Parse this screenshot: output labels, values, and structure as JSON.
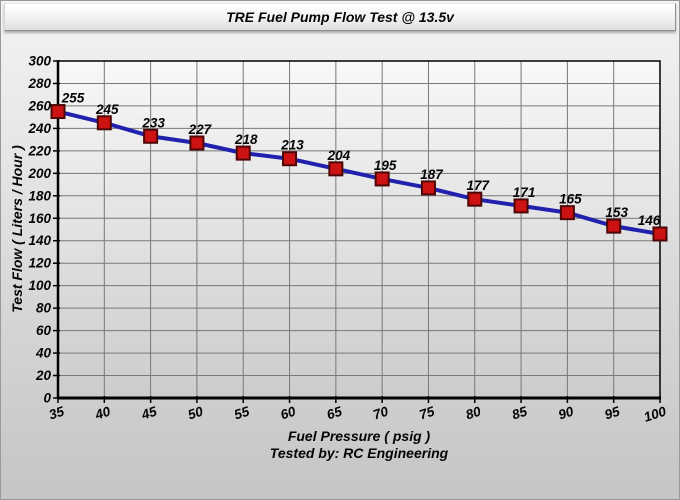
{
  "window_title": "TRE Fuel Pump Flow Test @ 13.5v",
  "chart_data": {
    "type": "line",
    "title": "TRE Fuel Pump Flow Test @ 13.5v",
    "xlabel": "Fuel Pressure ( psig )",
    "ylabel": "Test Flow ( Liters / Hour )",
    "footer": "Tested by: RC Engineering",
    "x": [
      35,
      40,
      45,
      50,
      55,
      60,
      65,
      70,
      75,
      80,
      85,
      90,
      95,
      100
    ],
    "values": [
      255,
      245,
      233,
      227,
      218,
      213,
      204,
      195,
      187,
      177,
      171,
      165,
      153,
      146
    ],
    "xlim": [
      35,
      100
    ],
    "ylim": [
      0,
      300
    ],
    "xtick_step": 5,
    "ytick_step": 20,
    "grid": true,
    "legend": "none",
    "marker": "square",
    "colors": {
      "line": "#2121ad",
      "marker_fill": "#cc1212",
      "marker_border": "#4d0606",
      "grid": "#787878",
      "axis": "#000000",
      "text": "#050505",
      "plot_bg_top": "#f8f8f8",
      "plot_bg_bottom": "#cccccc"
    }
  }
}
